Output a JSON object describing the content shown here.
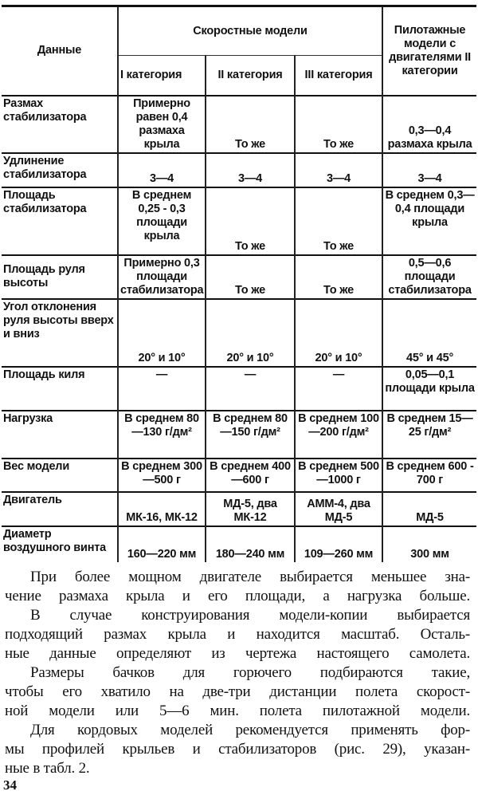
{
  "table": {
    "header": {
      "data_col": "Данные",
      "speed_group": "Скоростные модели",
      "aerobatic": "Пилотажные модели с двигателями II категории",
      "cat1": "I категория",
      "cat2": "II категория",
      "cat3": "III категория"
    },
    "rows": [
      {
        "label": "Размах стабилизатора",
        "c1": "Примерно равен 0,4 размаха крыла",
        "c2": "То же",
        "c3": "То же",
        "c4": "0,3—0,4 размаха крыла"
      },
      {
        "label": "Удлинение стабилизатора",
        "c1": "3—4",
        "c2": "3—4",
        "c3": "3—4",
        "c4": "3—4"
      },
      {
        "label": "Площадь стабилизатора",
        "c1": "В среднем 0,25 - 0,3 площади крыла",
        "c2": "То же",
        "c3": "То же",
        "c4": "В среднем 0,3—0,4 площади крыла"
      },
      {
        "label": "Площадь руля высоты",
        "c1": "Примерно 0,3 площади стабилизатора",
        "c2": "То же",
        "c3": "То же",
        "c4": "0,5—0,6 площади стабилизатора"
      },
      {
        "label": "Угол отклонения руля высоты вверх и вниз",
        "c1": "20° и 10°",
        "c2": "20° и 10°",
        "c3": "20° и 10°",
        "c4": "45° и 45°"
      },
      {
        "label": "Площадь киля",
        "c1": "—",
        "c2": "—",
        "c3": "—",
        "c4": "0,05—0,1 площади крыла"
      },
      {
        "label": "Нагрузка",
        "c1": "В среднем 80—130 г/дм²",
        "c2": "В среднем 80—150 г/дм²",
        "c3": "В среднем 100—200 г/дм²",
        "c4": "В среднем 15—25 г/дм²"
      },
      {
        "label": "Вес модели",
        "c1": "В среднем 300—500 г",
        "c2": "В среднем 400—600 г",
        "c3": "В среднем 500—1000 г",
        "c4": "В среднем 600 - 700 г"
      },
      {
        "label": "Двигатель",
        "c1": "МК-16, МК-12",
        "c2": "МД-5, два МК-12",
        "c3": "АММ-4, два МД-5",
        "c4": "МД-5"
      },
      {
        "label": "Диаметр воздушного винта",
        "c1": "160—220 мм",
        "c2": "180—240 мм",
        "c3": "109—260 мм",
        "c4": "300 мм"
      }
    ]
  },
  "body_text": {
    "lines": [
      "При более мощном двигателе выбирается меньшее зна-",
      "чение размаха крыла и его площади, а нагрузка больше.",
      "В случае конструирования модели-копии выбирается",
      "подходящий размах крыла и находится масштаб. Осталь-",
      "ные данные определяют из чертежа настоящего самолета.",
      "Размеры бачков для горючего подбираются такие,",
      "чтобы его хватило на две-три дистанции полета скорост-",
      "ной модели или 5—6 мин. полета пилотажной модели.",
      "Для кордовых моделей рекомендуется применять фор-",
      "мы профилей крыльев и стабилизаторов (рис. 29), указан-",
      "ные в табл. 2."
    ]
  },
  "page_number": "34"
}
